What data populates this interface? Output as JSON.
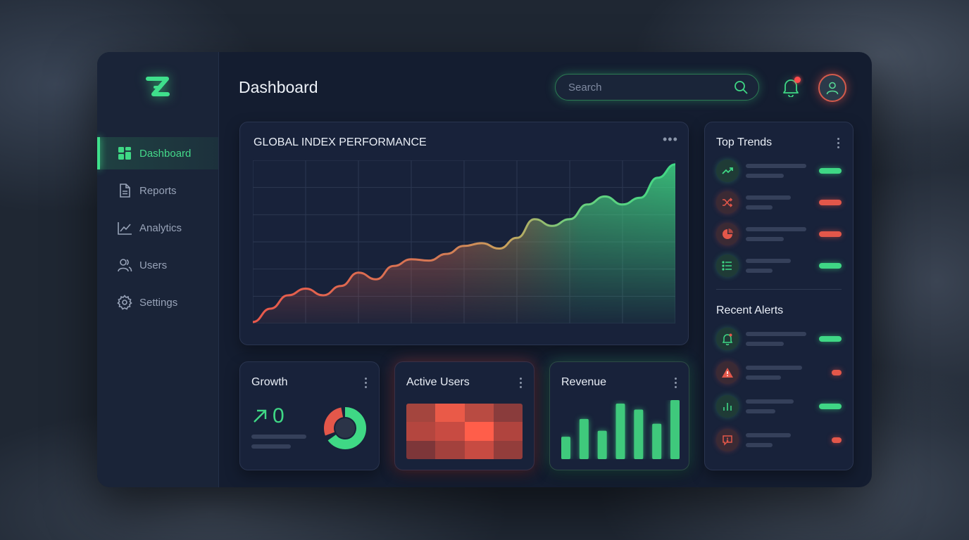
{
  "app": {
    "title": "Dashboard"
  },
  "sidebar": {
    "logo_icon": "z-logo-icon",
    "items": [
      {
        "label": "Dashboard",
        "icon": "grid-icon",
        "active": true
      },
      {
        "label": "Reports",
        "icon": "document-icon",
        "active": false
      },
      {
        "label": "Analytics",
        "icon": "line-chart-icon",
        "active": false
      },
      {
        "label": "Users",
        "icon": "users-icon",
        "active": false
      },
      {
        "label": "Settings",
        "icon": "gear-icon",
        "active": false
      }
    ]
  },
  "header": {
    "search_placeholder": "Search",
    "notification_badge": true
  },
  "main_chart": {
    "title": "GLOBAL INDEX PERFORMANCE",
    "menu_icon": "more-horizontal-icon"
  },
  "chart_data": {
    "type": "area",
    "title": "GLOBAL INDEX PERFORMANCE",
    "xlabel": "",
    "ylabel": "",
    "grid": true,
    "x": [
      0,
      1,
      2,
      3,
      4,
      5,
      6,
      7,
      8,
      9,
      10,
      11,
      12,
      13,
      14,
      15,
      16,
      17,
      18,
      19,
      20,
      21,
      22,
      23,
      24
    ],
    "values": [
      0,
      10,
      20,
      25,
      20,
      27,
      37,
      32,
      42,
      47,
      46,
      51,
      57,
      59,
      55,
      63,
      77,
      72,
      77,
      88,
      94,
      88,
      93,
      108,
      118
    ],
    "ylim": [
      0,
      120
    ],
    "colors": {
      "start": "#e9584b",
      "mid": "#c08a52",
      "end": "#3fd885"
    }
  },
  "cards": {
    "growth": {
      "title": "Growth",
      "value": "0",
      "arrow_icon": "arrow-up-right-icon"
    },
    "active_users": {
      "title": "Active Users"
    },
    "revenue": {
      "title": "Revenue",
      "bars": [
        0.38,
        0.68,
        0.48,
        0.94,
        0.84,
        0.6,
        1.0
      ]
    }
  },
  "right_panel": {
    "top_trends_title": "Top Trends",
    "top_trends": [
      {
        "icon": "trending-up-icon",
        "status": "green"
      },
      {
        "icon": "shuffle-icon",
        "status": "red"
      },
      {
        "icon": "pie-chart-icon",
        "status": "red"
      },
      {
        "icon": "list-icon",
        "status": "green"
      }
    ],
    "recent_alerts_title": "Recent Alerts",
    "recent_alerts": [
      {
        "icon": "bell-alert-icon",
        "status": "green"
      },
      {
        "icon": "warning-icon",
        "status": "red"
      },
      {
        "icon": "bar-chart-icon",
        "status": "green"
      },
      {
        "icon": "message-alert-icon",
        "status": "red"
      }
    ]
  }
}
